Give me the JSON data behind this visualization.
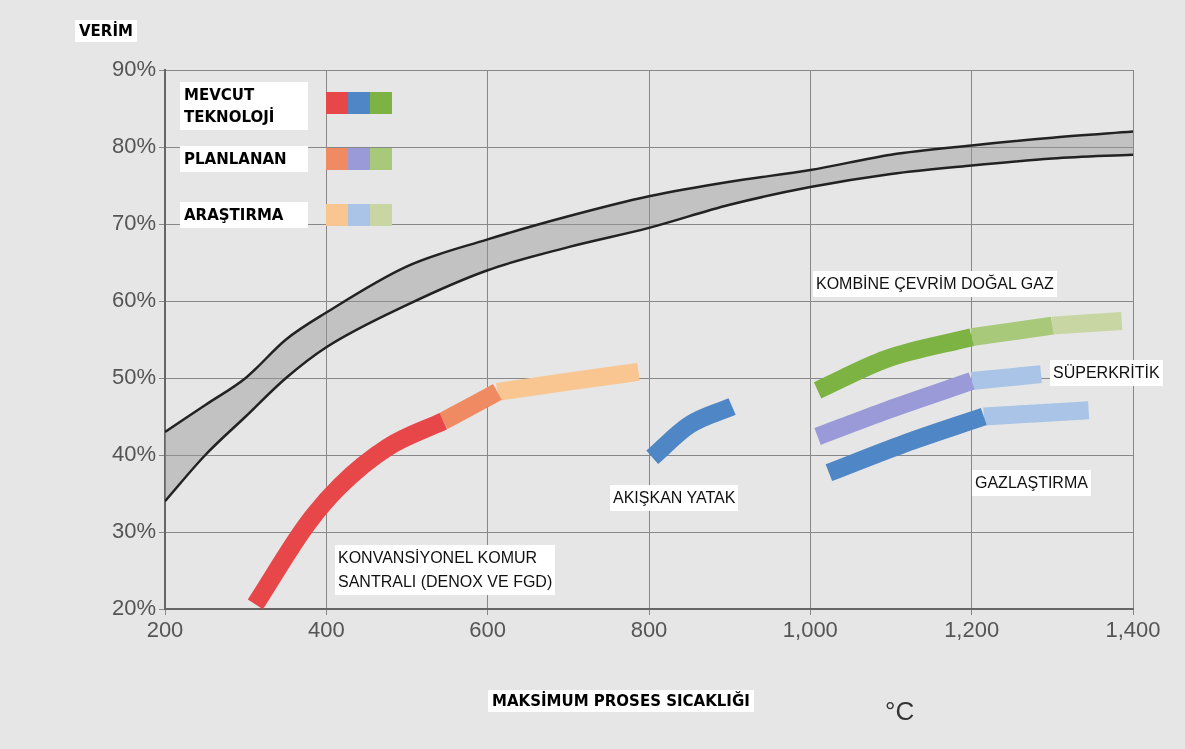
{
  "chart_data": {
    "type": "line",
    "xlabel": "MAKSİMUM PROSES SICAKLIĞI",
    "ylabel": "VERİM",
    "xlim": [
      200,
      1400
    ],
    "xticks": [
      200,
      400,
      600,
      800,
      {
        "value": 1000,
        "label": "1,000"
      },
      {
        "value": 1200,
        "label": "1,200"
      },
      {
        "value": 1400,
        "label": "1,400"
      }
    ],
    "ylim": [
      20,
      90
    ],
    "yticks": [
      {
        "value": 20,
        "label": "20%"
      },
      {
        "value": 30,
        "label": "30%"
      },
      {
        "value": 40,
        "label": "40%"
      },
      {
        "value": 50,
        "label": "50%"
      },
      {
        "value": 60,
        "label": "60%"
      },
      {
        "value": 70,
        "label": "70%"
      },
      {
        "value": 80,
        "label": "80%"
      },
      {
        "value": 90,
        "label": "90%"
      }
    ],
    "grid": true,
    "marker": "none",
    "line_style": "solid",
    "series": [
      {
        "color": "#222222",
        "x": [
          200,
          250,
          300,
          350,
          400,
          500,
          600,
          700,
          800,
          900,
          1000,
          1100,
          1200,
          1300,
          1400
        ],
        "values": [
          43,
          46.5,
          50,
          55,
          58.5,
          64.5,
          68,
          71,
          73.6,
          75.5,
          77,
          79,
          80.2,
          81.2,
          82
        ]
      },
      {
        "color": "#222222",
        "x": [
          200,
          250,
          300,
          350,
          400,
          500,
          600,
          700,
          800,
          900,
          1000,
          1100,
          1200,
          1300,
          1400
        ],
        "values": [
          34,
          40,
          45,
          50,
          54,
          59.5,
          64,
          67,
          69.5,
          72.5,
          74.8,
          76.5,
          77.6,
          78.5,
          79
        ]
      },
      {
        "color": "#e8474a",
        "x": [
          312,
          376,
          417,
          476,
          545
        ],
        "values": [
          20.6,
          31,
          36,
          41,
          44.4
        ]
      },
      {
        "color": "#ef8a62",
        "x": [
          545,
          586,
          612
        ],
        "values": [
          44.4,
          46.7,
          48.2
        ]
      },
      {
        "color": "#f9c590",
        "x": [
          612,
          704,
          787
        ],
        "values": [
          48.2,
          49.6,
          50.8
        ]
      },
      {
        "color": "#4f86c6",
        "x": [
          804,
          850,
          903
        ],
        "values": [
          39.7,
          43.9,
          46.3
        ]
      },
      {
        "color": "#7cb342",
        "x": [
          1009,
          1095,
          1200
        ],
        "values": [
          48.4,
          52.5,
          55.3
        ]
      },
      {
        "color": "#a9c97a",
        "x": [
          1200,
          1300
        ],
        "values": [
          55.3,
          56.8
        ]
      },
      {
        "color": "#c8d6a4",
        "x": [
          1300,
          1386
        ],
        "values": [
          56.8,
          57.4
        ]
      },
      {
        "color": "#9a9ad8",
        "x": [
          1009,
          1095,
          1200
        ],
        "values": [
          42.4,
          45.8,
          49.6
        ]
      },
      {
        "color": "#a9c4e6",
        "x": [
          1200,
          1286
        ],
        "values": [
          49.6,
          50.5
        ]
      },
      {
        "color": "#4f86c6",
        "x": [
          1023,
          1117,
          1215
        ],
        "values": [
          37.7,
          41.5,
          45
        ]
      },
      {
        "color": "#a9c4e6",
        "x": [
          1215,
          1345
        ],
        "values": [
          45,
          45.8
        ]
      }
    ],
    "annotations": [
      "MEVCUT TEKNOLOJİ",
      "PLANLANAN",
      "ARAŞTIRMA",
      "KONVANSİYONEL KOMUR\nSANTRALI (DENOX VE FGD)",
      "AKIŞKAN YATAK",
      "KOMBİNE ÇEVRİM DOĞAL GAZ",
      "SÜPERKRİTİK",
      "GAZLAŞTIRMA",
      "°C"
    ]
  }
}
